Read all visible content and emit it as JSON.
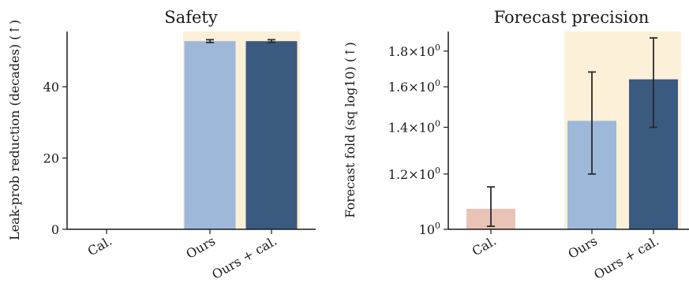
{
  "chart_data": [
    {
      "type": "bar",
      "title": "Safety",
      "ylabel": "Leak-prob reduction (decades) (↑)",
      "xlabel": "",
      "categories": [
        "Cal.",
        "Ours",
        "Ours + cal."
      ],
      "values": [
        0,
        52.8,
        52.8
      ],
      "errors": [
        0,
        0.4,
        0.4
      ],
      "ylim": [
        0,
        55.5
      ],
      "yticks": [
        0,
        20,
        40
      ],
      "ytick_labels": [
        "0",
        "20",
        "40"
      ],
      "bar_colors": [
        "#e8c3b6",
        "#9db8d9",
        "#3b5a80"
      ],
      "highlight_categories": [
        "Ours",
        "Ours + cal."
      ],
      "highlight_color": "#fdf0d8",
      "grid": false
    },
    {
      "type": "bar",
      "title": "Forecast precision",
      "ylabel": "Forecast fold (sq log10) (↑)",
      "xlabel": "",
      "yscale": "log",
      "categories": [
        "Cal.",
        "Ours",
        "Ours + cal."
      ],
      "values": [
        1.07,
        1.43,
        1.64
      ],
      "err_low": [
        0.06,
        0.23,
        0.24
      ],
      "err_high": [
        0.08,
        0.25,
        0.24
      ],
      "ylim": [
        1.0,
        1.92
      ],
      "yticks": [
        1.0,
        1.2,
        1.4,
        1.6,
        1.8
      ],
      "ytick_labels": [
        {
          "mant": "10",
          "exp": "0"
        },
        {
          "mant": "1.2×10",
          "exp": "0"
        },
        {
          "mant": "1.4×10",
          "exp": "0"
        },
        {
          "mant": "1.6×10",
          "exp": "0"
        },
        {
          "mant": "1.8×10",
          "exp": "0"
        }
      ],
      "bar_colors": [
        "#e8c3b6",
        "#9db8d9",
        "#3b5a80"
      ],
      "highlight_categories": [
        "Ours",
        "Ours + cal."
      ],
      "highlight_color": "#fdf0d8",
      "grid": false
    }
  ]
}
